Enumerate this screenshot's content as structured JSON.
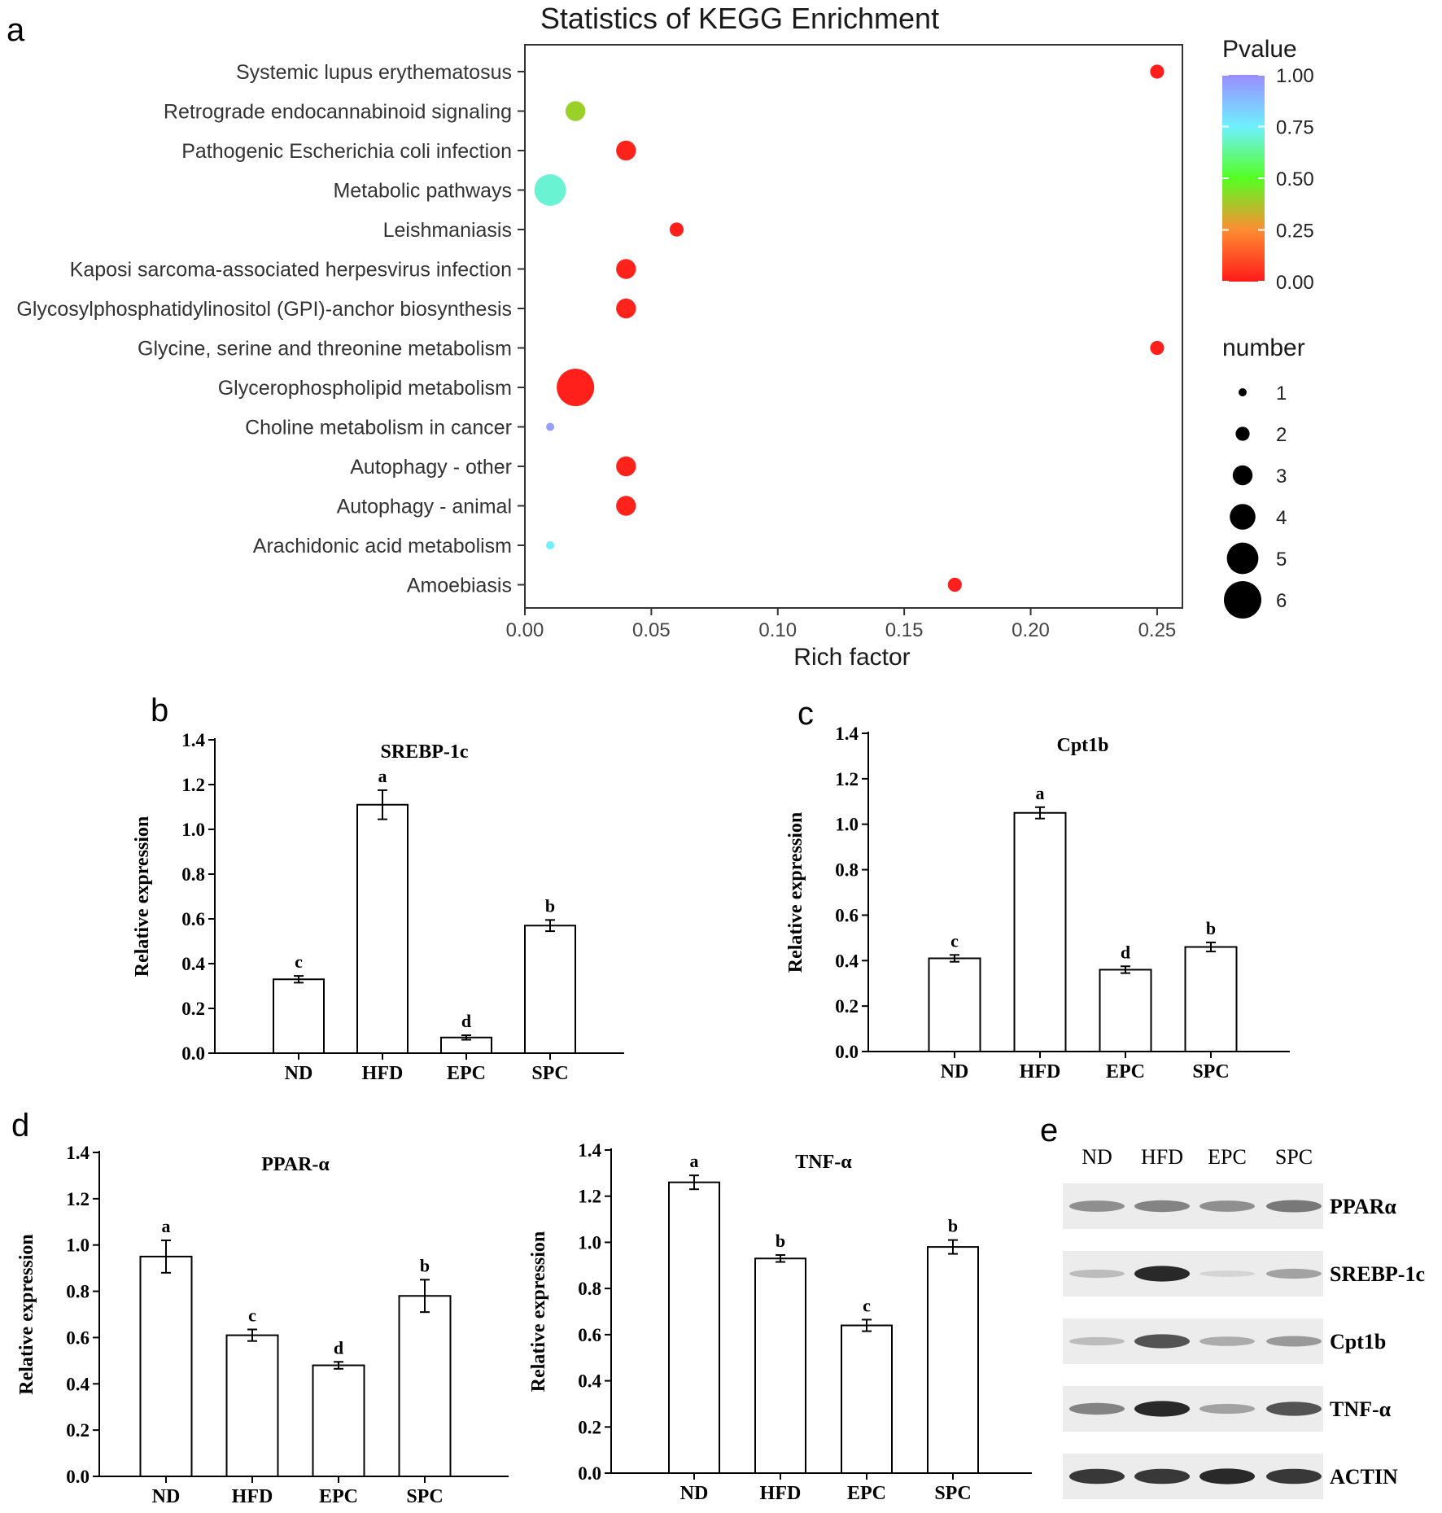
{
  "panel_labels": [
    "a",
    "b",
    "c",
    "d",
    "e"
  ],
  "chart_data": [
    {
      "panel": "a",
      "type": "scatter",
      "title": "Statistics of KEGG Enrichment",
      "xlabel": "Rich factor",
      "ylabel": "",
      "xlim": [
        0,
        0.26
      ],
      "xticks": [
        "0.00",
        "0.05",
        "0.10",
        "0.15",
        "0.20",
        "0.25"
      ],
      "xtick_values": [
        0,
        0.05,
        0.1,
        0.15,
        0.2,
        0.25
      ],
      "categories": [
        "Systemic lupus erythematosus",
        "Retrograde endocannabinoid signaling",
        "Pathogenic Escherichia coli infection",
        "Metabolic pathways",
        "Leishmaniasis",
        "Kaposi sarcoma-associated herpesvirus infection",
        "Glycosylphosphatidylinositol (GPI)-anchor biosynthesis",
        "Glycine, serine and threonine metabolism",
        "Glycerophospholipid metabolism",
        "Choline metabolism in cancer",
        "Autophagy - other",
        "Autophagy - animal",
        "Arachidonic acid metabolism",
        "Amoebiasis"
      ],
      "points": [
        {
          "category": "Systemic lupus erythematosus",
          "rich_factor": 0.25,
          "pvalue": 0.01,
          "number": 2
        },
        {
          "category": "Retrograde endocannabinoid signaling",
          "rich_factor": 0.02,
          "pvalue": 0.4,
          "number": 3
        },
        {
          "category": "Pathogenic Escherichia coli infection",
          "rich_factor": 0.04,
          "pvalue": 0.02,
          "number": 3
        },
        {
          "category": "Metabolic pathways",
          "rich_factor": 0.01,
          "pvalue": 0.7,
          "number": 5
        },
        {
          "category": "Leishmaniasis",
          "rich_factor": 0.06,
          "pvalue": 0.01,
          "number": 2
        },
        {
          "category": "Kaposi sarcoma-associated herpesvirus infection",
          "rich_factor": 0.04,
          "pvalue": 0.02,
          "number": 3
        },
        {
          "category": "Glycosylphosphatidylinositol (GPI)-anchor biosynthesis",
          "rich_factor": 0.04,
          "pvalue": 0.02,
          "number": 3
        },
        {
          "category": "Glycine, serine and threonine metabolism",
          "rich_factor": 0.25,
          "pvalue": 0.01,
          "number": 2
        },
        {
          "category": "Glycerophospholipid metabolism",
          "rich_factor": 0.02,
          "pvalue": 0.01,
          "number": 6
        },
        {
          "category": "Choline metabolism in cancer",
          "rich_factor": 0.01,
          "pvalue": 0.95,
          "number": 1
        },
        {
          "category": "Autophagy - other",
          "rich_factor": 0.04,
          "pvalue": 0.02,
          "number": 3
        },
        {
          "category": "Autophagy - animal",
          "rich_factor": 0.04,
          "pvalue": 0.02,
          "number": 3
        },
        {
          "category": "Arachidonic acid metabolism",
          "rich_factor": 0.01,
          "pvalue": 0.75,
          "number": 1
        },
        {
          "category": "Amoebiasis",
          "rich_factor": 0.17,
          "pvalue": 0.01,
          "number": 2
        }
      ],
      "legend_color": {
        "title": "Pvalue",
        "ticks": [
          "1.00",
          "0.75",
          "0.50",
          "0.25",
          "0.00"
        ],
        "tick_values": [
          1,
          0.75,
          0.5,
          0.25,
          0
        ],
        "colors": [
          "#9a8cff",
          "#6ff0ff",
          "#55ff22",
          "#ff8c32",
          "#ff1a1a"
        ]
      },
      "legend_size": {
        "title": "number",
        "values": [
          1,
          2,
          3,
          4,
          5,
          6
        ],
        "labels": [
          "1",
          "2",
          "3",
          "4",
          "5",
          "6"
        ]
      }
    },
    {
      "panel": "b",
      "type": "bar",
      "title": "SREBP-1c",
      "ylabel": "Relative expression",
      "ylim": [
        0,
        1.4
      ],
      "yticks": [
        "0.0",
        "0.2",
        "0.4",
        "0.6",
        "0.8",
        "1.0",
        "1.2",
        "1.4"
      ],
      "ytick_values": [
        0,
        0.2,
        0.4,
        0.6,
        0.8,
        1.0,
        1.2,
        1.4
      ],
      "categories": [
        "ND",
        "HFD",
        "EPC",
        "SPC"
      ],
      "values": [
        0.33,
        1.11,
        0.07,
        0.57
      ],
      "errors": [
        0.015,
        0.065,
        0.01,
        0.025
      ],
      "letters": [
        "c",
        "a",
        "d",
        "b"
      ]
    },
    {
      "panel": "c",
      "type": "bar",
      "title": "Cpt1b",
      "ylabel": "Relative expression",
      "ylim": [
        0,
        1.4
      ],
      "yticks": [
        "0.0",
        "0.2",
        "0.4",
        "0.6",
        "0.8",
        "1.0",
        "1.2",
        "1.4"
      ],
      "ytick_values": [
        0,
        0.2,
        0.4,
        0.6,
        0.8,
        1.0,
        1.2,
        1.4
      ],
      "categories": [
        "ND",
        "HFD",
        "EPC",
        "SPC"
      ],
      "values": [
        0.41,
        1.05,
        0.36,
        0.46
      ],
      "errors": [
        0.015,
        0.025,
        0.015,
        0.02
      ],
      "letters": [
        "c",
        "a",
        "d",
        "b"
      ]
    },
    {
      "panel": "d",
      "type": "bar",
      "title": "PPAR-α",
      "ylabel": "Relative expression",
      "ylim": [
        0,
        1.4
      ],
      "yticks": [
        "0.0",
        "0.2",
        "0.4",
        "0.6",
        "0.8",
        "1.0",
        "1.2",
        "1.4"
      ],
      "ytick_values": [
        0,
        0.2,
        0.4,
        0.6,
        0.8,
        1.0,
        1.2,
        1.4
      ],
      "categories": [
        "ND",
        "HFD",
        "EPC",
        "SPC"
      ],
      "values": [
        0.95,
        0.61,
        0.48,
        0.78
      ],
      "errors": [
        0.07,
        0.025,
        0.015,
        0.07
      ],
      "letters": [
        "a",
        "c",
        "d",
        "b"
      ]
    },
    {
      "panel": "d2",
      "type": "bar",
      "title": "TNF-α",
      "ylabel": "Relative expression",
      "ylim": [
        0,
        1.4
      ],
      "yticks": [
        "0.0",
        "0.2",
        "0.4",
        "0.6",
        "0.8",
        "1.0",
        "1.2",
        "1.4"
      ],
      "ytick_values": [
        0,
        0.2,
        0.4,
        0.6,
        0.8,
        1.0,
        1.2,
        1.4
      ],
      "categories": [
        "ND",
        "HFD",
        "EPC",
        "SPC"
      ],
      "values": [
        1.26,
        0.93,
        0.64,
        0.98
      ],
      "errors": [
        0.03,
        0.015,
        0.025,
        0.03
      ],
      "letters": [
        "a",
        "b",
        "c",
        "b"
      ]
    }
  ],
  "western_blot": {
    "panel": "e",
    "lanes": [
      "ND",
      "HFD",
      "EPC",
      "SPC"
    ],
    "rows": [
      {
        "label": "PPARα",
        "intensities": [
          0.55,
          0.6,
          0.55,
          0.65
        ]
      },
      {
        "label": "SREBP-1c",
        "intensities": [
          0.3,
          0.95,
          0.12,
          0.45
        ]
      },
      {
        "label": "Cpt1b",
        "intensities": [
          0.3,
          0.8,
          0.4,
          0.5
        ]
      },
      {
        "label": "TNF-α",
        "intensities": [
          0.6,
          0.95,
          0.45,
          0.8
        ]
      },
      {
        "label": "ACTIN",
        "intensities": [
          0.9,
          0.9,
          0.95,
          0.9
        ]
      }
    ]
  }
}
